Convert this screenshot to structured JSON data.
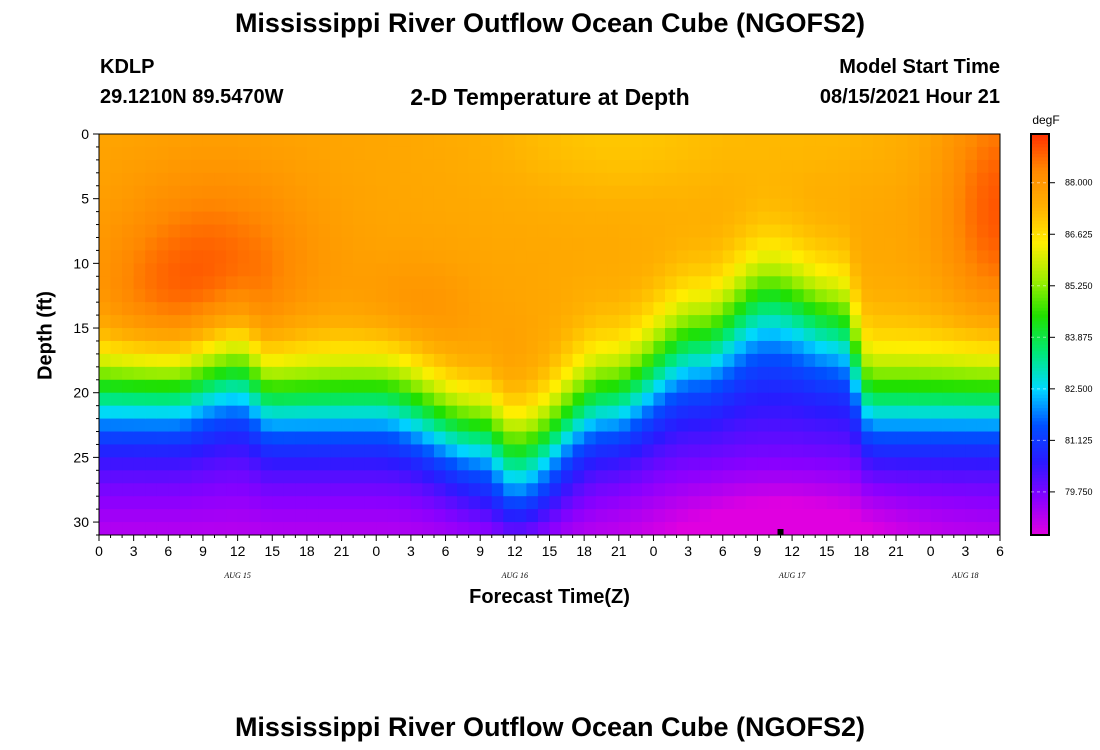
{
  "header": {
    "title": "Mississippi River Outflow Ocean Cube (NGOFS2)",
    "station_id": "KDLP",
    "station_coords": "29.1210N  89.5470W",
    "product": "2-D Temperature at Depth",
    "model_start_label": "Model Start Time",
    "model_start_value": "08/15/2021 Hour 21"
  },
  "footer": {
    "title": "Mississippi River Outflow Ocean Cube (NGOFS2)"
  },
  "chart_data": {
    "type": "heatmap",
    "xlabel": "Forecast Time(Z)",
    "ylabel": "Depth (ft)",
    "x_ticks": [
      "0",
      "3",
      "6",
      "9",
      "12",
      "15",
      "18",
      "21",
      "0",
      "3",
      "6",
      "9",
      "12",
      "15",
      "18",
      "21",
      "0",
      "3",
      "6",
      "9",
      "12",
      "15",
      "18",
      "21",
      "0",
      "3",
      "6"
    ],
    "x_tick_hours": [
      0,
      3,
      6,
      9,
      12,
      15,
      18,
      21,
      24,
      27,
      30,
      33,
      36,
      39,
      42,
      45,
      48,
      51,
      54,
      57,
      60,
      63,
      66,
      69,
      72,
      75,
      78
    ],
    "x_range_hours": [
      0,
      78
    ],
    "date_labels": [
      {
        "label": "AUG 15",
        "hour": 12
      },
      {
        "label": "AUG 16",
        "hour": 36
      },
      {
        "label": "AUG 17",
        "hour": 60
      },
      {
        "label": "AUG 18",
        "hour": 75
      }
    ],
    "y_ticks": [
      0,
      5,
      10,
      15,
      20,
      25,
      30
    ],
    "y_range_ft": [
      0,
      31
    ],
    "colorbar": {
      "unit": "degF",
      "ticks": [
        "88.000",
        "86.625",
        "85.250",
        "83.875",
        "82.500",
        "81.125",
        "79.750"
      ],
      "tick_values": [
        88.0,
        86.625,
        85.25,
        83.875,
        82.5,
        81.125,
        79.75
      ],
      "range": [
        78.6,
        89.3
      ],
      "colors": [
        "#e000e0",
        "#8a00ff",
        "#2a1aff",
        "#0050ff",
        "#00d8ff",
        "#00e878",
        "#20e000",
        "#a0ee00",
        "#ffee00",
        "#ffb000",
        "#ff8800",
        "#ff3000"
      ]
    },
    "surface_temp_degF": 87.6,
    "warm_core_temp_degF": 89.0,
    "bottom_temp_degF": 79.0,
    "thermocline_depth_ft": [
      {
        "hour": 0,
        "depth": 19.5
      },
      {
        "hour": 6,
        "depth": 19.5
      },
      {
        "hour": 12,
        "depth": 18.0
      },
      {
        "hour": 15,
        "depth": 20.0
      },
      {
        "hour": 24,
        "depth": 20.0
      },
      {
        "hour": 33,
        "depth": 23.0
      },
      {
        "hour": 36,
        "depth": 25.0
      },
      {
        "hour": 44,
        "depth": 20.0
      },
      {
        "hour": 52,
        "depth": 15.5
      },
      {
        "hour": 58,
        "depth": 12.0
      },
      {
        "hour": 64,
        "depth": 14.0
      },
      {
        "hour": 67,
        "depth": 20.0
      },
      {
        "hour": 78,
        "depth": 20.0
      }
    ],
    "marker": {
      "hour": 59,
      "depth_ft": 31
    }
  }
}
